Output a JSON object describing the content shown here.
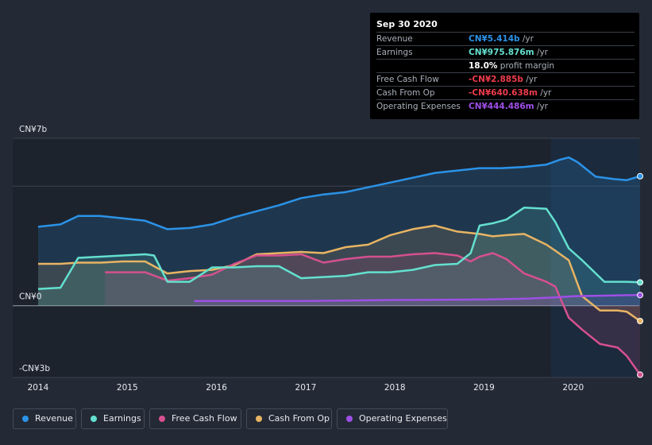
{
  "chart_data": {
    "type": "area",
    "ylim": [
      -3,
      7
    ],
    "y_axis_labels": [
      {
        "value": 7,
        "label": "CN¥7b"
      },
      {
        "value": 0,
        "label": "CN¥0"
      },
      {
        "value": -3,
        "label": "-CN¥3b"
      }
    ],
    "x_ticks": [
      {
        "x": 2014,
        "label": "2014"
      },
      {
        "x": 2015,
        "label": "2015"
      },
      {
        "x": 2016,
        "label": "2016"
      },
      {
        "x": 2017,
        "label": "2017"
      },
      {
        "x": 2018,
        "label": "2018"
      },
      {
        "x": 2019,
        "label": "2019"
      },
      {
        "x": 2020,
        "label": "2020"
      }
    ],
    "xlim": [
      2013.72,
      2020.78
    ],
    "forecast_start": 2019.75,
    "series": [
      {
        "name": "Revenue",
        "color": "#2b93e8",
        "x": [
          2014.0,
          2014.25,
          2014.45,
          2014.7,
          2014.95,
          2015.2,
          2015.45,
          2015.7,
          2015.95,
          2016.2,
          2016.45,
          2016.7,
          2016.95,
          2017.2,
          2017.45,
          2017.7,
          2017.95,
          2018.2,
          2018.45,
          2018.7,
          2018.95,
          2019.2,
          2019.45,
          2019.7,
          2019.85,
          2019.95,
          2020.05,
          2020.25,
          2020.45,
          2020.6,
          2020.75
        ],
        "y": [
          3.3,
          3.4,
          3.75,
          3.75,
          3.65,
          3.55,
          3.2,
          3.25,
          3.4,
          3.7,
          3.95,
          4.2,
          4.5,
          4.65,
          4.75,
          4.95,
          5.15,
          5.35,
          5.55,
          5.65,
          5.75,
          5.75,
          5.8,
          5.9,
          6.1,
          6.2,
          6.0,
          5.4,
          5.3,
          5.25,
          5.414
        ]
      },
      {
        "name": "Earnings",
        "color": "#64e0cf",
        "x": [
          2014.0,
          2014.25,
          2014.45,
          2014.7,
          2014.95,
          2015.2,
          2015.3,
          2015.45,
          2015.7,
          2015.95,
          2016.2,
          2016.45,
          2016.7,
          2016.95,
          2017.2,
          2017.45,
          2017.7,
          2017.95,
          2018.2,
          2018.45,
          2018.7,
          2018.85,
          2018.95,
          2019.1,
          2019.25,
          2019.45,
          2019.7,
          2019.8,
          2019.95,
          2020.1,
          2020.35,
          2020.6,
          2020.75
        ],
        "y": [
          0.7,
          0.75,
          2.0,
          2.05,
          2.1,
          2.15,
          2.1,
          1.0,
          1.0,
          1.6,
          1.6,
          1.65,
          1.65,
          1.15,
          1.2,
          1.25,
          1.4,
          1.4,
          1.5,
          1.7,
          1.75,
          2.2,
          3.35,
          3.45,
          3.6,
          4.1,
          4.05,
          3.5,
          2.4,
          1.9,
          1.0,
          1.0,
          0.976
        ]
      },
      {
        "name": "Free Cash Flow",
        "color": "#d6508f",
        "x": [
          2014.75,
          2014.95,
          2015.2,
          2015.45,
          2015.7,
          2015.95,
          2016.2,
          2016.45,
          2016.7,
          2016.95,
          2017.2,
          2017.45,
          2017.7,
          2017.95,
          2018.2,
          2018.45,
          2018.7,
          2018.85,
          2018.95,
          2019.1,
          2019.25,
          2019.45,
          2019.7,
          2019.8,
          2019.95,
          2020.1,
          2020.3,
          2020.5,
          2020.6,
          2020.75
        ],
        "y": [
          1.4,
          1.4,
          1.4,
          1.05,
          1.15,
          1.3,
          1.75,
          2.1,
          2.1,
          2.15,
          1.8,
          1.95,
          2.05,
          2.05,
          2.15,
          2.2,
          2.1,
          1.85,
          2.05,
          2.2,
          1.95,
          1.35,
          1.0,
          0.8,
          -0.5,
          -1.0,
          -1.6,
          -1.75,
          -2.1,
          -2.885
        ]
      },
      {
        "name": "Cash From Op",
        "color": "#e8b463",
        "x": [
          2014.0,
          2014.25,
          2014.45,
          2014.7,
          2014.95,
          2015.2,
          2015.45,
          2015.7,
          2015.95,
          2016.2,
          2016.45,
          2016.7,
          2016.95,
          2017.2,
          2017.45,
          2017.7,
          2017.95,
          2018.2,
          2018.45,
          2018.7,
          2018.95,
          2019.1,
          2019.25,
          2019.45,
          2019.7,
          2019.8,
          2019.95,
          2020.1,
          2020.3,
          2020.5,
          2020.6,
          2020.75
        ],
        "y": [
          1.75,
          1.75,
          1.8,
          1.8,
          1.85,
          1.85,
          1.35,
          1.45,
          1.5,
          1.7,
          2.15,
          2.2,
          2.25,
          2.2,
          2.45,
          2.55,
          2.95,
          3.2,
          3.35,
          3.1,
          3.0,
          2.9,
          2.95,
          3.0,
          2.55,
          2.3,
          1.9,
          0.4,
          -0.2,
          -0.2,
          -0.25,
          -0.641
        ]
      },
      {
        "name": "Operating Expenses",
        "color": "#9e4fe6",
        "x": [
          2015.75,
          2016.0,
          2016.5,
          2017.0,
          2017.5,
          2018.0,
          2018.5,
          2019.0,
          2019.5,
          2019.8,
          2020.0,
          2020.3,
          2020.6,
          2020.75
        ],
        "y": [
          0.2,
          0.2,
          0.2,
          0.2,
          0.22,
          0.24,
          0.25,
          0.26,
          0.3,
          0.35,
          0.4,
          0.42,
          0.44,
          0.444
        ]
      }
    ]
  },
  "tooltip": {
    "date": "Sep 30 2020",
    "rows": [
      {
        "label": "Revenue",
        "value": "CN¥5.414b",
        "unit": " /yr",
        "color": "#2b93e8"
      },
      {
        "label": "Earnings",
        "value": "CN¥975.876m",
        "unit": " /yr",
        "color": "#64e0cf"
      },
      {
        "label": "",
        "value": "18.0%",
        "unit": " profit margin",
        "color": "#ffffff"
      },
      {
        "label": "Free Cash Flow",
        "value": "-CN¥2.885b",
        "unit": " /yr",
        "color": "#ee3b4b"
      },
      {
        "label": "Cash From Op",
        "value": "-CN¥640.638m",
        "unit": " /yr",
        "color": "#ee3b4b"
      },
      {
        "label": "Operating Expenses",
        "value": "CN¥444.486m",
        "unit": " /yr",
        "color": "#9e4fe6"
      }
    ]
  },
  "legend": [
    {
      "label": "Revenue",
      "color": "#2b93e8"
    },
    {
      "label": "Earnings",
      "color": "#64e0cf"
    },
    {
      "label": "Free Cash Flow",
      "color": "#d6508f"
    },
    {
      "label": "Cash From Op",
      "color": "#e8b463"
    },
    {
      "label": "Operating Expenses",
      "color": "#9e4fe6"
    }
  ]
}
